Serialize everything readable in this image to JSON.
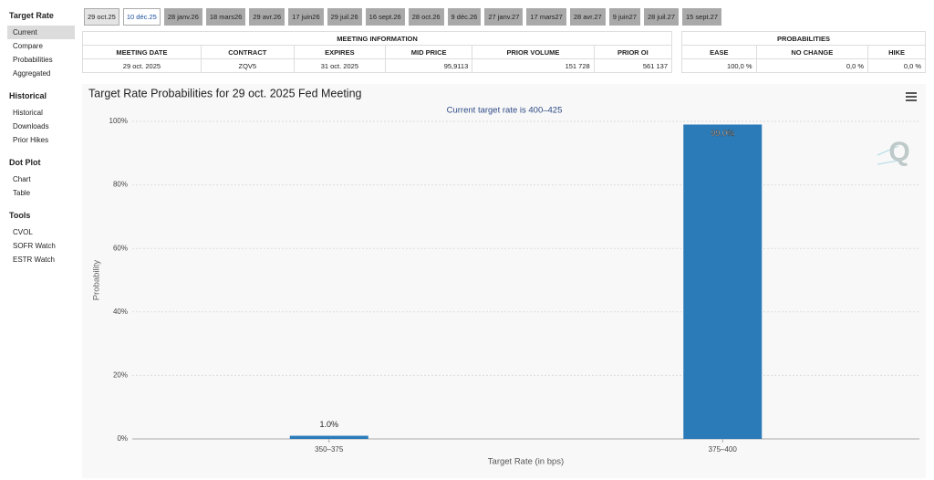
{
  "sidebar": {
    "sections": [
      {
        "title": "Target Rate",
        "items": [
          "Current",
          "Compare",
          "Probabilities",
          "Aggregated"
        ]
      },
      {
        "title": "Historical",
        "items": [
          "Historical",
          "Downloads",
          "Prior Hikes"
        ]
      },
      {
        "title": "Dot Plot",
        "items": [
          "Chart",
          "Table"
        ]
      },
      {
        "title": "Tools",
        "items": [
          "CVOL",
          "SOFR Watch",
          "ESTR Watch"
        ]
      }
    ]
  },
  "tabs": [
    "29 oct.25",
    "10 déc.25",
    "28 janv.26",
    "18 mars26",
    "29 avr.26",
    "17 juin26",
    "29 juil.26",
    "16 sept.26",
    "28 oct.26",
    "9 déc.26",
    "27 janv.27",
    "17 mars27",
    "28 avr.27",
    "9 juin27",
    "28 juil.27",
    "15 sept.27"
  ],
  "meeting_table": {
    "title": "MEETING INFORMATION",
    "headers": [
      "MEETING DATE",
      "CONTRACT",
      "EXPIRES",
      "MID PRICE",
      "PRIOR VOLUME",
      "PRIOR OI"
    ],
    "row": [
      "29 oct. 2025",
      "ZQV5",
      "31 oct. 2025",
      "95,9113",
      "151 728",
      "561 137"
    ]
  },
  "probabilities_table": {
    "title": "PROBABILITIES",
    "headers": [
      "EASE",
      "NO CHANGE",
      "HIKE"
    ],
    "row": [
      "100,0 %",
      "0,0 %",
      "0,0 %"
    ]
  },
  "chart_data": {
    "type": "bar",
    "title": "Target Rate Probabilities for 29 oct. 2025 Fed Meeting",
    "subtitle": "Current target rate is 400–425",
    "x_label": "Target Rate (in bps)",
    "y_label": "Probability",
    "categories": [
      "350–375",
      "375–400"
    ],
    "values": [
      1.0,
      99.0
    ],
    "value_labels": [
      "1.0%",
      "99.0%"
    ],
    "color": "#2b7bb9",
    "ylim": [
      0,
      100
    ],
    "yticks": [
      {
        "value": 0,
        "label": "0%"
      },
      {
        "value": 20,
        "label": "20%"
      },
      {
        "value": 40,
        "label": "40%"
      },
      {
        "value": 60,
        "label": "60%"
      },
      {
        "value": 80,
        "label": "80%"
      },
      {
        "value": 100,
        "label": "100%"
      }
    ],
    "grid": true
  }
}
